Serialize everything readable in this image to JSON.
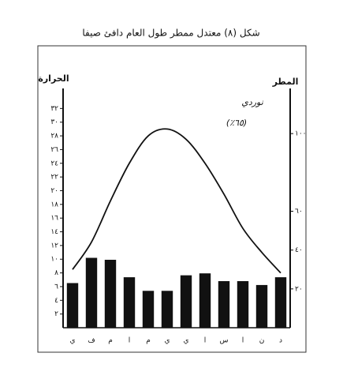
{
  "chart_data": {
    "type": "combo",
    "title": "شكل (٨) معتدل ممطر طول العام دافئ صيفا",
    "y_label": "الحرارة",
    "y2_label": "المطر",
    "annotations": [
      "نوردي",
      "(٦٥٪)"
    ],
    "categories": [
      "ي",
      "ف",
      "م",
      "ا",
      "م",
      "ي",
      "ي",
      "ا",
      "س",
      "ا",
      "ن",
      "د"
    ],
    "series": [
      {
        "kind": "bar",
        "axis": "y2",
        "color": "#111111",
        "values": [
          23,
          36,
          35,
          26,
          19,
          19,
          27,
          28,
          24,
          24,
          22,
          26
        ]
      },
      {
        "kind": "line",
        "axis": "y",
        "color": "#111111",
        "values": [
          8.5,
          12.5,
          18.5,
          24,
          28,
          29,
          27.5,
          24,
          19.5,
          14.5,
          11,
          8
        ]
      }
    ],
    "ylim": [
      0,
      34
    ],
    "yticks": [
      {
        "value": 2,
        "label": "٢"
      },
      {
        "value": 4,
        "label": "٤"
      },
      {
        "value": 6,
        "label": "٦"
      },
      {
        "value": 8,
        "label": "٨"
      },
      {
        "value": 10,
        "label": "١٠"
      },
      {
        "value": 12,
        "label": "١٢"
      },
      {
        "value": 14,
        "label": "١٤"
      },
      {
        "value": 16,
        "label": "١٦"
      },
      {
        "value": 18,
        "label": "١٨"
      },
      {
        "value": 20,
        "label": "٢٠"
      },
      {
        "value": 22,
        "label": "٢٢"
      },
      {
        "value": 24,
        "label": "٢٤"
      },
      {
        "value": 26,
        "label": "٢٦"
      },
      {
        "value": 28,
        "label": "٢٨"
      },
      {
        "value": 30,
        "label": "٣٠"
      },
      {
        "value": 32,
        "label": "٣٢"
      }
    ],
    "y2lim": [
      0,
      120
    ],
    "y2ticks": [
      {
        "value": 20,
        "label": "٢٠"
      },
      {
        "value": 40,
        "label": "٤٠"
      },
      {
        "value": 60,
        "label": "٦٠"
      },
      {
        "value": 100,
        "label": "١٠٠"
      }
    ]
  }
}
